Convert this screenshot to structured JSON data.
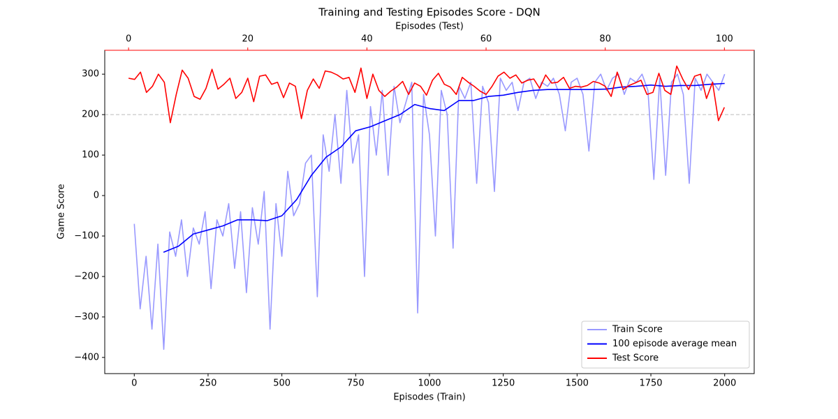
{
  "chart_data": {
    "type": "line",
    "title": "Training and Testing Episodes Score - DQN",
    "xlabel": "Episodes (Train)",
    "x2label": "Episodes (Test)",
    "ylabel": "Game Score",
    "xlim": [
      -100,
      2100
    ],
    "xticks": [
      0,
      250,
      500,
      750,
      1000,
      1250,
      1500,
      1750,
      2000
    ],
    "x2lim": [
      -4,
      105
    ],
    "x2ticks": [
      0,
      20,
      40,
      60,
      80,
      100
    ],
    "x2color": "#ff0000",
    "ylim": [
      -440,
      359
    ],
    "yticks": [
      {
        "value": -400,
        "label": "−400"
      },
      {
        "value": -300,
        "label": "−300"
      },
      {
        "value": -200,
        "label": "−200"
      },
      {
        "value": -100,
        "label": "−100"
      },
      0,
      100,
      200,
      300
    ],
    "hline": 200,
    "legend": "lower right",
    "series": [
      {
        "name": "Train Score",
        "color": "#9999ff",
        "xaxis": "x",
        "x": [
          0,
          20,
          40,
          60,
          80,
          100,
          120,
          140,
          160,
          180,
          200,
          220,
          240,
          260,
          280,
          300,
          320,
          340,
          360,
          380,
          400,
          420,
          440,
          460,
          480,
          500,
          520,
          540,
          560,
          580,
          600,
          620,
          640,
          660,
          680,
          700,
          720,
          740,
          760,
          780,
          800,
          820,
          840,
          860,
          880,
          900,
          920,
          940,
          960,
          980,
          1000,
          1020,
          1040,
          1060,
          1080,
          1100,
          1120,
          1140,
          1160,
          1180,
          1200,
          1220,
          1240,
          1260,
          1280,
          1300,
          1320,
          1340,
          1360,
          1380,
          1400,
          1420,
          1440,
          1460,
          1480,
          1500,
          1520,
          1540,
          1560,
          1580,
          1600,
          1620,
          1640,
          1660,
          1680,
          1700,
          1720,
          1740,
          1760,
          1780,
          1800,
          1820,
          1840,
          1860,
          1880,
          1900,
          1920,
          1940,
          1960,
          1980,
          2000
        ],
        "values": [
          -70,
          -280,
          -150,
          -330,
          -120,
          -380,
          -90,
          -150,
          -60,
          -200,
          -80,
          -120,
          -40,
          -230,
          -60,
          -100,
          -20,
          -180,
          -40,
          -240,
          -30,
          -120,
          10,
          -330,
          -20,
          -150,
          60,
          -50,
          -20,
          80,
          100,
          -250,
          150,
          60,
          200,
          30,
          260,
          80,
          150,
          -200,
          220,
          100,
          260,
          50,
          270,
          180,
          230,
          280,
          -290,
          250,
          150,
          -100,
          260,
          200,
          -130,
          270,
          240,
          280,
          30,
          270,
          230,
          10,
          290,
          260,
          280,
          210,
          280,
          290,
          240,
          280,
          270,
          290,
          250,
          160,
          280,
          290,
          250,
          110,
          280,
          300,
          260,
          290,
          300,
          250,
          290,
          280,
          300,
          260,
          40,
          290,
          50,
          280,
          300,
          250,
          30,
          290,
          260,
          300,
          280,
          260,
          300
        ]
      },
      {
        "name": "100 episode average mean",
        "color": "#0000ff",
        "xaxis": "x",
        "x": [
          99,
          150,
          200,
          250,
          300,
          350,
          400,
          450,
          500,
          550,
          600,
          650,
          700,
          750,
          800,
          850,
          900,
          950,
          1000,
          1050,
          1100,
          1150,
          1200,
          1250,
          1300,
          1350,
          1400,
          1450,
          1500,
          1550,
          1600,
          1650,
          1700,
          1750,
          1800,
          1850,
          1900,
          1950,
          2000
        ],
        "values": [
          -140,
          -125,
          -95,
          -85,
          -75,
          -60,
          -60,
          -62,
          -50,
          -10,
          50,
          95,
          120,
          160,
          170,
          185,
          200,
          225,
          215,
          210,
          235,
          235,
          245,
          248,
          255,
          260,
          262,
          262,
          262,
          262,
          263,
          268,
          270,
          273,
          270,
          272,
          272,
          275,
          277
        ]
      },
      {
        "name": "Test Score",
        "color": "#ff0000",
        "xaxis": "x2",
        "x": [
          0,
          1,
          2,
          3,
          4,
          5,
          6,
          7,
          8,
          9,
          10,
          11,
          12,
          13,
          14,
          15,
          16,
          17,
          18,
          19,
          20,
          21,
          22,
          23,
          24,
          25,
          26,
          27,
          28,
          29,
          30,
          31,
          32,
          33,
          34,
          35,
          36,
          37,
          38,
          39,
          40,
          41,
          42,
          43,
          44,
          45,
          46,
          47,
          48,
          49,
          50,
          51,
          52,
          53,
          54,
          55,
          56,
          57,
          58,
          59,
          60,
          61,
          62,
          63,
          64,
          65,
          66,
          67,
          68,
          69,
          70,
          71,
          72,
          73,
          74,
          75,
          76,
          77,
          78,
          79,
          80,
          81,
          82,
          83,
          84,
          85,
          86,
          87,
          88,
          89,
          90,
          91,
          92,
          93,
          94,
          95,
          96,
          97,
          98,
          99,
          100
        ],
        "values": [
          290,
          287,
          305,
          255,
          270,
          300,
          280,
          180,
          250,
          310,
          290,
          245,
          238,
          265,
          312,
          263,
          275,
          290,
          240,
          255,
          290,
          232,
          295,
          298,
          275,
          280,
          242,
          278,
          270,
          190,
          260,
          288,
          265,
          308,
          305,
          298,
          288,
          292,
          255,
          315,
          240,
          300,
          260,
          245,
          258,
          268,
          282,
          250,
          278,
          270,
          248,
          285,
          302,
          275,
          268,
          250,
          292,
          280,
          270,
          258,
          250,
          270,
          295,
          305,
          290,
          298,
          278,
          285,
          288,
          265,
          298,
          278,
          280,
          292,
          265,
          270,
          268,
          272,
          282,
          278,
          270,
          245,
          305,
          262,
          272,
          278,
          285,
          250,
          255,
          302,
          260,
          250,
          320,
          288,
          262,
          295,
          300,
          240,
          280,
          185,
          218
        ]
      }
    ]
  }
}
